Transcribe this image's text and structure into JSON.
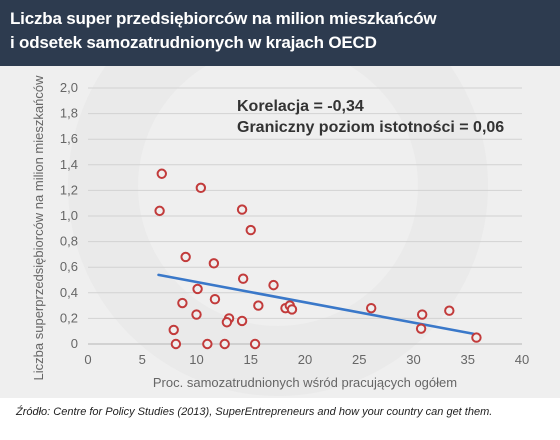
{
  "header": {
    "title_line1": "Liczba super przedsiębiorców na milion mieszkańców",
    "title_line2": "i odsetek samozatrudnionych w krajach OECD",
    "bg_color": "#2d3b4f"
  },
  "chart_data": {
    "type": "scatter",
    "xlabel": "Proc. samozatrudnionych wśród pracujących ogółem",
    "ylabel": "Liczba superprzedsiębiorców na milion mieszkańców",
    "xlim": [
      0,
      40
    ],
    "ylim": [
      0,
      2.0
    ],
    "x_ticks": [
      0,
      5,
      10,
      15,
      20,
      25,
      30,
      35,
      40
    ],
    "x_tick_labels": [
      "0",
      "5",
      "10",
      "15",
      "20",
      "25",
      "30",
      "35",
      "40"
    ],
    "y_ticks": [
      0,
      0.2,
      0.4,
      0.6,
      0.8,
      1.0,
      1.2,
      1.4,
      1.6,
      1.8,
      2.0
    ],
    "y_tick_labels": [
      "0",
      "0,2",
      "0,4",
      "0,6",
      "0,8",
      "1,0",
      "1,2",
      "1,4",
      "1,6",
      "1,8",
      "2,0"
    ],
    "grid": "horizontal",
    "points": [
      {
        "x": 6.8,
        "y": 1.33
      },
      {
        "x": 6.6,
        "y": 1.04
      },
      {
        "x": 10.4,
        "y": 1.22
      },
      {
        "x": 14.2,
        "y": 1.05
      },
      {
        "x": 15.0,
        "y": 0.89
      },
      {
        "x": 9.0,
        "y": 0.68
      },
      {
        "x": 11.6,
        "y": 0.63
      },
      {
        "x": 14.3,
        "y": 0.51
      },
      {
        "x": 17.1,
        "y": 0.46
      },
      {
        "x": 10.1,
        "y": 0.43
      },
      {
        "x": 11.7,
        "y": 0.35
      },
      {
        "x": 8.7,
        "y": 0.32
      },
      {
        "x": 15.7,
        "y": 0.3
      },
      {
        "x": 18.2,
        "y": 0.28
      },
      {
        "x": 18.6,
        "y": 0.3
      },
      {
        "x": 18.8,
        "y": 0.27
      },
      {
        "x": 10.0,
        "y": 0.23
      },
      {
        "x": 13.0,
        "y": 0.2
      },
      {
        "x": 12.8,
        "y": 0.17
      },
      {
        "x": 14.2,
        "y": 0.18
      },
      {
        "x": 7.9,
        "y": 0.11
      },
      {
        "x": 26.1,
        "y": 0.28
      },
      {
        "x": 30.8,
        "y": 0.23
      },
      {
        "x": 33.3,
        "y": 0.26
      },
      {
        "x": 30.7,
        "y": 0.12
      },
      {
        "x": 8.1,
        "y": 0.0
      },
      {
        "x": 11.0,
        "y": 0.0
      },
      {
        "x": 12.6,
        "y": 0.0
      },
      {
        "x": 15.4,
        "y": 0.0
      },
      {
        "x": 35.8,
        "y": 0.05
      }
    ],
    "trendline": {
      "x1": 6.5,
      "y1": 0.54,
      "x2": 35.5,
      "y2": 0.08
    },
    "point_color": "#c23b3b",
    "trend_color": "#3a78c9",
    "annotations": [
      {
        "text": "Korelacja = -0,34"
      },
      {
        "text": "Graniczny poziom istotności = 0,06"
      }
    ]
  },
  "source_text": "Źródło: Centre for Policy Studies (2013), SuperEntrepreneurs and how your country can get them."
}
